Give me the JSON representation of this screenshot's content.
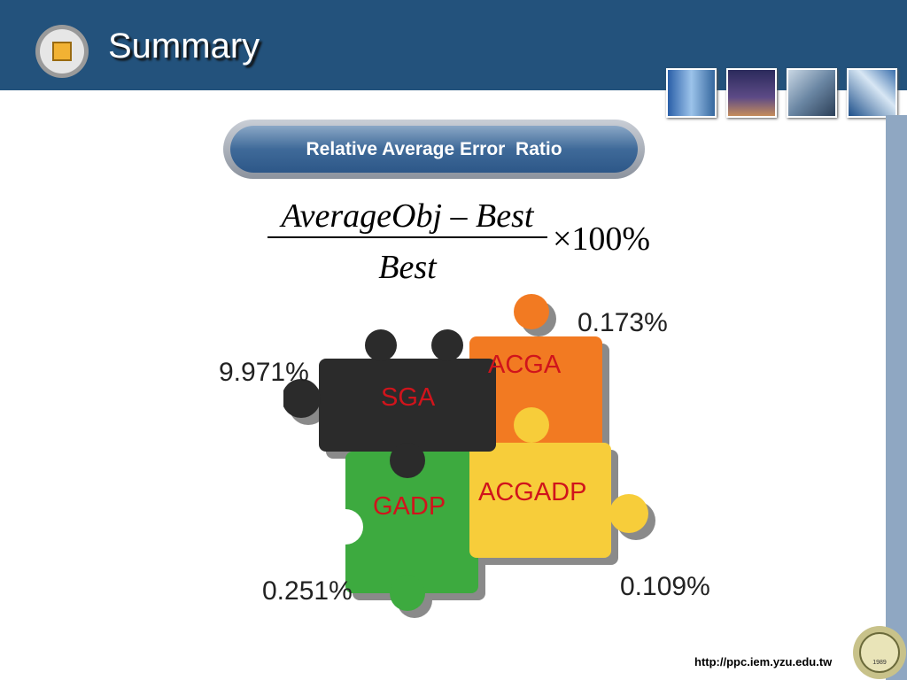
{
  "header": {
    "title": "Summary"
  },
  "banner": {
    "text": "Relative Average Error  Ratio"
  },
  "formula": {
    "numerator": "AverageObj – Best",
    "denominator": "Best",
    "multiplier": "×100%"
  },
  "pieces": [
    {
      "label": "SGA",
      "value": "9.971%"
    },
    {
      "label": "ACGA",
      "value": "0.173%"
    },
    {
      "label": "GADP",
      "value": "0.251%"
    },
    {
      "label": "ACGADP",
      "value": "0.109%"
    }
  ],
  "footer": {
    "url": "http://ppc.iem.yzu.edu.tw",
    "logo_text": "1989"
  }
}
